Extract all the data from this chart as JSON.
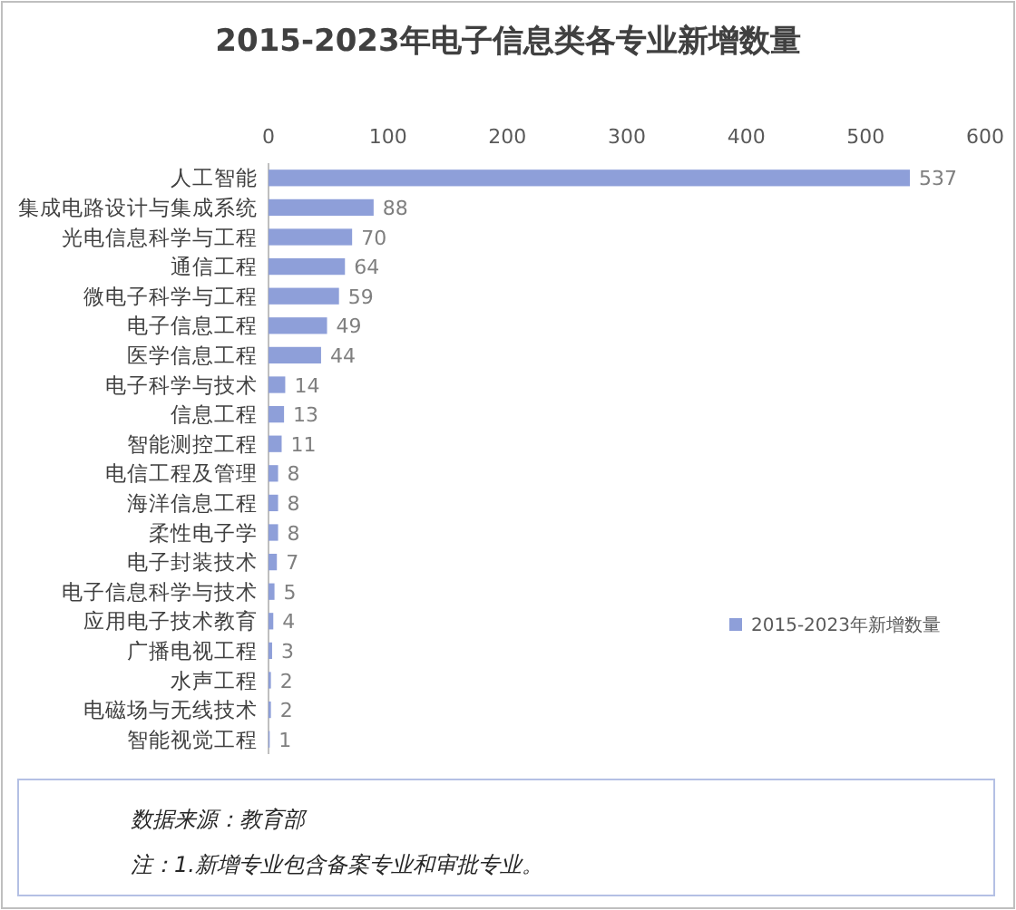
{
  "chart_data": {
    "type": "bar",
    "orientation": "horizontal",
    "title": "2015-2023年电子信息类各专业新增数量",
    "categories": [
      "人工智能",
      "集成电路设计与集成系统",
      "光电信息科学与工程",
      "通信工程",
      "微电子科学与工程",
      "电子信息工程",
      "医学信息工程",
      "电子科学与技术",
      "信息工程",
      "智能测控工程",
      "电信工程及管理",
      "海洋信息工程",
      "柔性电子学",
      "电子封装技术",
      "电子信息科学与技术",
      "应用电子技术教育",
      "广播电视工程",
      "水声工程",
      "电磁场与无线技术",
      "智能视觉工程"
    ],
    "series": [
      {
        "name": "2015-2023年新增数量",
        "color": "#8e9fd9",
        "values": [
          537,
          88,
          70,
          64,
          59,
          49,
          44,
          14,
          13,
          11,
          8,
          8,
          8,
          7,
          5,
          4,
          3,
          2,
          2,
          1
        ]
      }
    ],
    "xlim": [
      0,
      600
    ],
    "xticks": [
      0,
      100,
      200,
      300,
      400,
      500,
      600
    ],
    "data_labels": true,
    "legend": "right",
    "annotations": [
      "数据来源：教育部",
      "注：1.新增专业包含备案专业和审批专业。"
    ]
  }
}
